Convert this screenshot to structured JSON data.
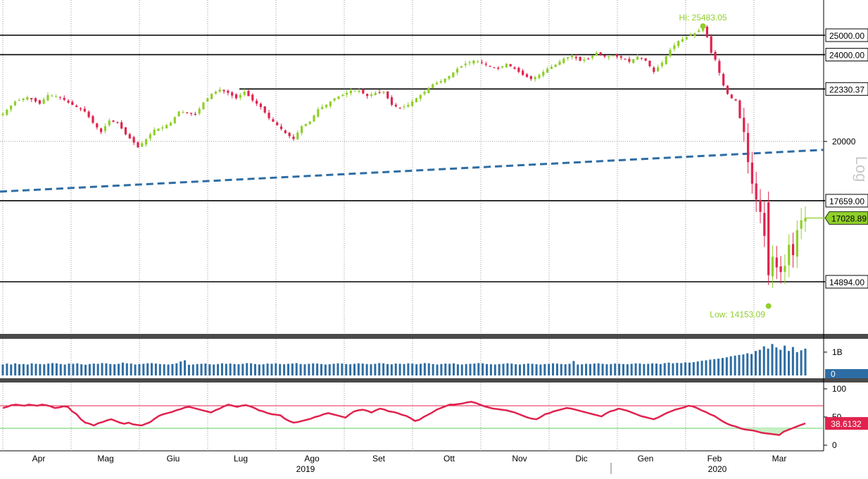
{
  "chart_data": {
    "type": "candlestick",
    "scale": "Log",
    "axis_side": "right",
    "grid": true,
    "x_months": [
      "Apr",
      "Mag",
      "Giu",
      "Lug",
      "Ago",
      "Set",
      "Ott",
      "Nov",
      "Dic",
      "Gen",
      "Feb",
      "Mar"
    ],
    "x_years": [
      "2019",
      "2020"
    ],
    "y_ticks": [
      "20000"
    ],
    "y_range": [
      13300,
      27100
    ],
    "levels": [
      {
        "label": "25000.00",
        "value": 25000
      },
      {
        "label": "24000.00",
        "value": 24000
      },
      {
        "label": "22330.37",
        "value": 22330.37
      },
      {
        "label": "17659.00",
        "value": 17659
      },
      {
        "label": "14894.00",
        "value": 14894
      }
    ],
    "last_price": {
      "label": "17028.89",
      "value": 17028.89
    },
    "high": {
      "label": "Hi: 25483.05",
      "value": 25483.05
    },
    "low": {
      "label": "Low: 14153.09",
      "value": 14153.09
    },
    "trendline": {
      "start": 18000,
      "end": 19650
    },
    "close_path": [
      [
        0,
        21200
      ],
      [
        3,
        21750
      ],
      [
        6,
        21950
      ],
      [
        9,
        21650
      ],
      [
        11,
        22050
      ],
      [
        14,
        21950
      ],
      [
        16,
        21700
      ],
      [
        18,
        21500
      ],
      [
        20,
        21300
      ],
      [
        22,
        20800
      ],
      [
        24,
        20400
      ],
      [
        26,
        20900
      ],
      [
        28,
        20800
      ],
      [
        30,
        20300
      ],
      [
        32,
        19950
      ],
      [
        33,
        19750
      ],
      [
        35,
        20100
      ],
      [
        37,
        20500
      ],
      [
        39,
        20600
      ],
      [
        41,
        20800
      ],
      [
        43,
        21300
      ],
      [
        45,
        21250
      ],
      [
        47,
        21150
      ],
      [
        49,
        21700
      ],
      [
        51,
        22100
      ],
      [
        53,
        22300
      ],
      [
        55,
        22150
      ],
      [
        57,
        21900
      ],
      [
        59,
        22200
      ],
      [
        61,
        21800
      ],
      [
        63,
        21500
      ],
      [
        65,
        21000
      ],
      [
        67,
        20700
      ],
      [
        69,
        20350
      ],
      [
        71,
        20100
      ],
      [
        73,
        20650
      ],
      [
        75,
        20850
      ],
      [
        77,
        21400
      ],
      [
        79,
        21600
      ],
      [
        81,
        21900
      ],
      [
        83,
        22050
      ],
      [
        85,
        22250
      ],
      [
        87,
        22250
      ],
      [
        89,
        22000
      ],
      [
        91,
        22150
      ],
      [
        93,
        22200
      ],
      [
        95,
        21600
      ],
      [
        97,
        21450
      ],
      [
        99,
        21600
      ],
      [
        101,
        21900
      ],
      [
        103,
        22200
      ],
      [
        105,
        22550
      ],
      [
        107,
        22700
      ],
      [
        109,
        22950
      ],
      [
        111,
        23300
      ],
      [
        113,
        23550
      ],
      [
        115,
        23700
      ],
      [
        117,
        23600
      ],
      [
        119,
        23400
      ],
      [
        121,
        23300
      ],
      [
        123,
        23550
      ],
      [
        125,
        23300
      ],
      [
        127,
        23000
      ],
      [
        129,
        22800
      ],
      [
        131,
        23000
      ],
      [
        133,
        23300
      ],
      [
        135,
        23500
      ],
      [
        137,
        23800
      ],
      [
        139,
        23950
      ],
      [
        141,
        23700
      ],
      [
        143,
        23800
      ],
      [
        145,
        24100
      ],
      [
        147,
        23900
      ],
      [
        149,
        23950
      ],
      [
        151,
        23850
      ],
      [
        153,
        23650
      ],
      [
        155,
        23900
      ],
      [
        157,
        23700
      ],
      [
        159,
        23150
      ],
      [
        161,
        23600
      ],
      [
        163,
        24250
      ],
      [
        165,
        24700
      ],
      [
        167,
        24900
      ],
      [
        169,
        25100
      ],
      [
        171,
        25400
      ],
      [
        172,
        24900
      ],
      [
        173,
        24100
      ],
      [
        174,
        23750
      ],
      [
        175,
        23100
      ],
      [
        176,
        22500
      ],
      [
        177,
        22100
      ],
      [
        178,
        21900
      ],
      [
        179,
        21800
      ],
      [
        180,
        21000
      ],
      [
        181,
        20400
      ],
      [
        182,
        19150
      ],
      [
        183,
        18300
      ],
      [
        184,
        17700
      ],
      [
        185,
        17250
      ],
      [
        186,
        16400
      ],
      [
        187,
        15100
      ],
      [
        188,
        15700
      ],
      [
        189,
        15350
      ],
      [
        190,
        15200
      ],
      [
        191,
        15400
      ],
      [
        192,
        16100
      ],
      [
        193,
        15750
      ],
      [
        194,
        16600
      ],
      [
        195,
        16950
      ],
      [
        196,
        17028.89
      ]
    ],
    "volume": {
      "ticks": [
        "1B",
        "0"
      ],
      "last_label": "0",
      "values_billions": [
        0.47,
        0.51,
        0.47,
        0.52,
        0.48,
        0.49,
        0.47,
        0.52,
        0.5,
        0.49,
        0.48,
        0.51,
        0.53,
        0.52,
        0.49,
        0.47,
        0.51,
        0.5,
        0.52,
        0.48,
        0.46,
        0.49,
        0.51,
        0.5,
        0.53,
        0.52,
        0.49,
        0.48,
        0.5,
        0.55,
        0.52,
        0.51,
        0.47,
        0.49,
        0.5,
        0.52,
        0.53,
        0.51,
        0.49,
        0.48,
        0.47,
        0.49,
        0.52,
        0.6,
        0.65,
        0.46,
        0.47,
        0.49,
        0.5,
        0.51,
        0.48,
        0.47,
        0.49,
        0.52,
        0.5,
        0.51,
        0.49,
        0.48,
        0.5,
        0.53,
        0.52,
        0.49,
        0.47,
        0.48,
        0.51,
        0.5,
        0.52,
        0.49,
        0.48,
        0.5,
        0.51,
        0.53,
        0.49,
        0.48,
        0.5,
        0.52,
        0.51,
        0.49,
        0.47,
        0.48,
        0.5,
        0.52,
        0.51,
        0.49,
        0.48,
        0.5,
        0.52,
        0.51,
        0.49,
        0.48,
        0.5,
        0.53,
        0.52,
        0.49,
        0.48,
        0.51,
        0.5,
        0.49,
        0.52,
        0.51,
        0.48,
        0.5,
        0.53,
        0.52,
        0.49,
        0.47,
        0.49,
        0.51,
        0.5,
        0.52,
        0.48,
        0.47,
        0.49,
        0.5,
        0.51,
        0.53,
        0.52,
        0.49,
        0.48,
        0.47,
        0.49,
        0.5,
        0.52,
        0.51,
        0.48,
        0.47,
        0.49,
        0.51,
        0.5,
        0.48,
        0.47,
        0.49,
        0.5,
        0.52,
        0.51,
        0.49,
        0.48,
        0.5,
        0.62,
        0.47,
        0.48,
        0.5,
        0.49,
        0.51,
        0.52,
        0.5,
        0.48,
        0.49,
        0.51,
        0.5,
        0.49,
        0.48,
        0.5,
        0.52,
        0.51,
        0.49,
        0.5,
        0.52,
        0.51,
        0.49,
        0.53,
        0.55,
        0.52,
        0.54,
        0.53,
        0.56,
        0.55,
        0.57,
        0.6,
        0.63,
        0.65,
        0.68,
        0.7,
        0.72,
        0.75,
        0.78,
        0.82,
        0.85,
        0.88,
        0.9,
        0.95,
        0.92,
        1.05,
        1.1,
        1.25,
        1.15,
        1.35,
        1.2,
        1.1,
        1.28,
        1.05,
        1.22,
        1.0,
        1.08,
        1.15
      ]
    },
    "rsi": {
      "ticks": [
        "100",
        "50",
        "0"
      ],
      "last_label": "38.6132",
      "upper": 70,
      "lower": 30,
      "values": [
        66,
        68,
        71,
        72,
        71,
        70,
        72,
        71,
        70,
        72,
        71,
        69,
        66,
        67,
        69,
        68,
        60,
        55,
        46,
        40,
        38,
        35,
        39,
        41,
        44,
        46,
        43,
        40,
        38,
        40,
        37,
        36,
        35,
        38,
        41,
        47,
        52,
        55,
        57,
        59,
        62,
        64,
        67,
        68,
        66,
        64,
        62,
        60,
        58,
        62,
        65,
        69,
        72,
        70,
        68,
        70,
        71,
        69,
        66,
        62,
        60,
        57,
        55,
        54,
        53,
        47,
        43,
        40,
        41,
        43,
        45,
        47,
        50,
        52,
        55,
        57,
        55,
        53,
        51,
        49,
        55,
        60,
        62,
        63,
        61,
        58,
        62,
        65,
        63,
        60,
        59,
        57,
        54,
        52,
        48,
        43,
        45,
        50,
        54,
        58,
        63,
        66,
        69,
        72,
        72,
        73,
        74,
        76,
        77,
        75,
        72,
        69,
        67,
        65,
        64,
        63,
        62,
        60,
        58,
        55,
        52,
        49,
        47,
        46,
        50,
        55,
        57,
        60,
        62,
        64,
        66,
        65,
        63,
        61,
        59,
        57,
        55,
        53,
        51,
        56,
        60,
        62,
        65,
        63,
        61,
        58,
        55,
        52,
        50,
        48,
        46,
        49,
        53,
        57,
        60,
        63,
        65,
        67,
        70,
        69,
        66,
        62,
        59,
        55,
        52,
        47,
        42,
        38,
        35,
        33,
        30,
        28,
        27,
        26,
        24,
        22,
        21,
        20,
        19,
        18,
        24,
        27,
        30,
        33,
        36,
        38.6132
      ]
    }
  }
}
